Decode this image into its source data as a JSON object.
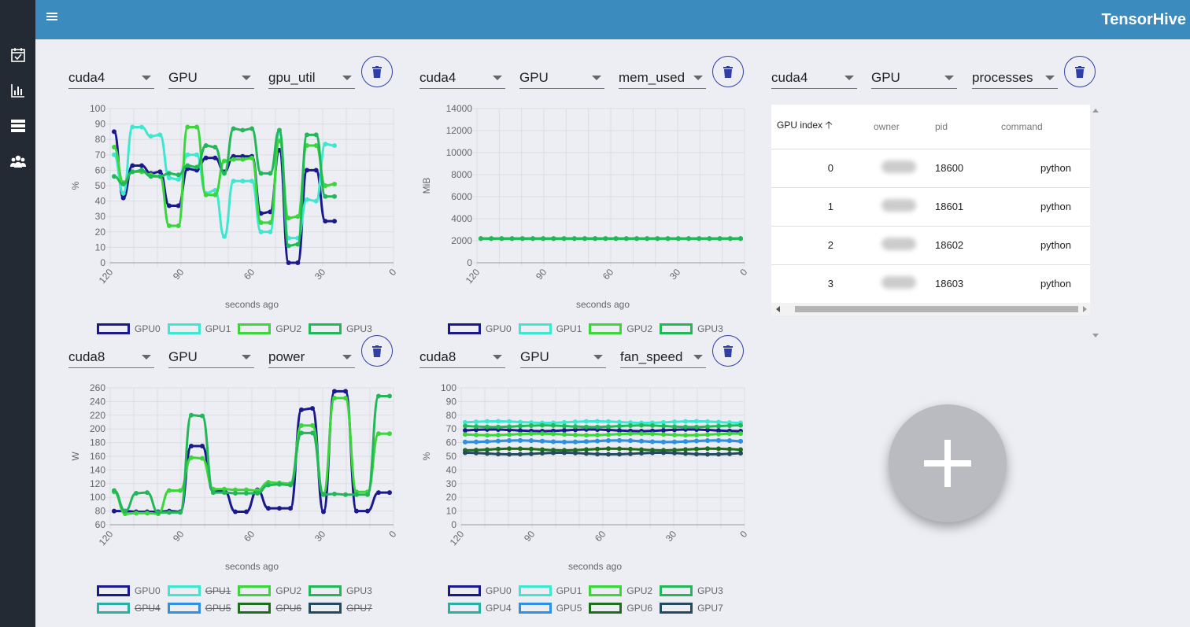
{
  "app": {
    "brand": "TensorHive"
  },
  "sidebar": {
    "items": [
      {
        "name": "reservations",
        "icon": "calendar-check-icon"
      },
      {
        "name": "usage",
        "icon": "bar-chart-icon",
        "active": true
      },
      {
        "name": "nodes",
        "icon": "server-icon"
      },
      {
        "name": "users",
        "icon": "users-icon"
      }
    ]
  },
  "panels": [
    {
      "host": "cuda4",
      "resource": "GPU",
      "metric": "gpu_util"
    },
    {
      "host": "cuda4",
      "resource": "GPU",
      "metric": "mem_used"
    },
    {
      "host": "cuda4",
      "resource": "GPU",
      "metric": "processes"
    },
    {
      "host": "cuda8",
      "resource": "GPU",
      "metric": "power"
    },
    {
      "host": "cuda8",
      "resource": "GPU",
      "metric": "fan_speed"
    }
  ],
  "process_table": {
    "columns": [
      "GPU index",
      "owner",
      "pid",
      "command"
    ],
    "sort_icon": "arrow-up-icon",
    "rows": [
      {
        "gpu_index": "0",
        "owner": "",
        "pid": "18600",
        "command": "python"
      },
      {
        "gpu_index": "1",
        "owner": "",
        "pid": "18601",
        "command": "python"
      },
      {
        "gpu_index": "2",
        "owner": "",
        "pid": "18602",
        "command": "python"
      },
      {
        "gpu_index": "3",
        "owner": "",
        "pid": "18603",
        "command": "python"
      }
    ]
  },
  "colors": {
    "GPU0": "#1a1a8c",
    "GPU1": "#3ee8d0",
    "GPU2": "#3ad63a",
    "GPU3": "#22b858",
    "GPU4": "#2ab0a0",
    "GPU5": "#2f8fe0",
    "GPU6": "#1e6e1e",
    "GPU7": "#244a5e",
    "accent": "#3b8bbf",
    "sidebar": "#242a33",
    "delete": "#2f3fa6"
  },
  "chart_data": [
    {
      "type": "line",
      "title": "",
      "xlabel": "seconds ago",
      "ylabel": "%",
      "ylim": [
        0,
        100
      ],
      "yticks": [
        0,
        10,
        20,
        30,
        40,
        50,
        60,
        70,
        80,
        90,
        100
      ],
      "xticks": [
        "120",
        "90",
        "60",
        "30",
        "0"
      ],
      "x": [
        120,
        116,
        112,
        108,
        104,
        100,
        96,
        92,
        88,
        84,
        80,
        76,
        72,
        68,
        64,
        60,
        56,
        52,
        48,
        44,
        40,
        36,
        32,
        28,
        24,
        20,
        16,
        12,
        8,
        4,
        0
      ],
      "series": [
        {
          "name": "GPU0",
          "values": [
            85,
            42,
            63,
            63,
            58,
            59,
            37,
            37,
            61,
            60,
            68,
            68,
            59,
            69,
            69,
            69,
            32,
            33,
            73,
            0,
            0,
            60,
            60,
            27,
            27,
            null,
            null,
            null,
            null,
            null,
            null
          ]
        },
        {
          "name": "GPU1",
          "values": [
            70,
            45,
            88,
            88,
            82,
            83,
            55,
            54,
            70,
            70,
            45,
            47,
            17,
            53,
            53,
            53,
            20,
            20,
            84,
            16,
            16,
            41,
            40,
            77,
            76,
            null,
            null,
            null,
            null,
            null,
            null
          ]
        },
        {
          "name": "GPU2",
          "values": [
            75,
            52,
            59,
            59,
            57,
            56,
            24,
            24,
            88,
            88,
            44,
            44,
            66,
            67,
            67,
            68,
            26,
            26,
            79,
            29,
            30,
            76,
            76,
            50,
            51,
            null,
            null,
            null,
            null,
            null,
            null
          ]
        },
        {
          "name": "GPU3",
          "values": [
            56,
            51,
            59,
            60,
            56,
            56,
            58,
            57,
            63,
            62,
            76,
            75,
            58,
            87,
            86,
            87,
            58,
            58,
            86,
            11,
            12,
            83,
            83,
            43,
            43,
            null,
            null,
            null,
            null,
            null,
            null
          ]
        }
      ],
      "hidden": []
    },
    {
      "type": "line",
      "title": "",
      "xlabel": "seconds ago",
      "ylabel": "MiB",
      "ylim": [
        0,
        14000
      ],
      "yticks": [
        0,
        2000,
        4000,
        6000,
        8000,
        10000,
        12000,
        14000
      ],
      "xticks": [
        "120",
        "90",
        "60",
        "30",
        "0"
      ],
      "series": [
        {
          "name": "GPU0",
          "values": [
            2200
          ]
        },
        {
          "name": "GPU1",
          "values": [
            2200
          ]
        },
        {
          "name": "GPU2",
          "values": [
            2200
          ]
        },
        {
          "name": "GPU3",
          "values": [
            2200
          ]
        }
      ],
      "hidden": []
    },
    {
      "type": "line",
      "title": "",
      "xlabel": "seconds ago",
      "ylabel": "W",
      "ylim": [
        60,
        260
      ],
      "yticks": [
        60,
        80,
        100,
        120,
        140,
        160,
        180,
        200,
        220,
        240,
        260
      ],
      "xticks": [
        "120",
        "90",
        "60",
        "30",
        "0"
      ],
      "series": [
        {
          "name": "GPU0",
          "values": [
            80,
            80,
            79,
            79,
            79,
            80,
            79,
            175,
            175,
            108,
            110,
            79,
            79,
            111,
            84,
            84,
            84,
            228,
            230,
            79,
            255,
            255,
            80,
            80,
            107,
            107
          ]
        },
        {
          "name": "GPU2",
          "values": [
            108,
            76,
            77,
            77,
            76,
            110,
            110,
            158,
            157,
            112,
            112,
            111,
            111,
            110,
            122,
            121,
            120,
            205,
            205,
            105,
            245,
            245,
            108,
            108,
            193,
            193
          ]
        },
        {
          "name": "GPU3",
          "values": [
            110,
            80,
            106,
            107,
            78,
            78,
            78,
            220,
            219,
            107,
            107,
            106,
            106,
            106,
            118,
            119,
            118,
            194,
            194,
            104,
            105,
            104,
            104,
            104,
            248,
            248
          ]
        }
      ],
      "hidden": [
        "GPU1",
        "GPU4",
        "GPU5",
        "GPU6",
        "GPU7"
      ]
    },
    {
      "type": "line",
      "title": "",
      "xlabel": "seconds ago",
      "ylabel": "%",
      "ylim": [
        0,
        100
      ],
      "yticks": [
        0,
        10,
        20,
        30,
        40,
        50,
        60,
        70,
        80,
        90,
        100
      ],
      "xticks": [
        "120",
        "90",
        "60",
        "30",
        "0"
      ],
      "series": [
        {
          "name": "GPU0",
          "values": [
            69
          ]
        },
        {
          "name": "GPU1",
          "values": [
            75
          ]
        },
        {
          "name": "GPU2",
          "values": [
            66
          ]
        },
        {
          "name": "GPU3",
          "values": [
            72
          ]
        },
        {
          "name": "GPU4",
          "values": [
            61
          ]
        },
        {
          "name": "GPU5",
          "values": [
            61
          ]
        },
        {
          "name": "GPU6",
          "values": [
            55
          ]
        },
        {
          "name": "GPU7",
          "values": [
            52
          ]
        }
      ],
      "hidden": []
    }
  ],
  "legends": {
    "top": [
      "GPU0",
      "GPU1",
      "GPU2",
      "GPU3"
    ],
    "eight": [
      "GPU0",
      "GPU1",
      "GPU2",
      "GPU3",
      "GPU4",
      "GPU5",
      "GPU6",
      "GPU7"
    ]
  },
  "fab": {
    "icon": "plus-icon"
  }
}
